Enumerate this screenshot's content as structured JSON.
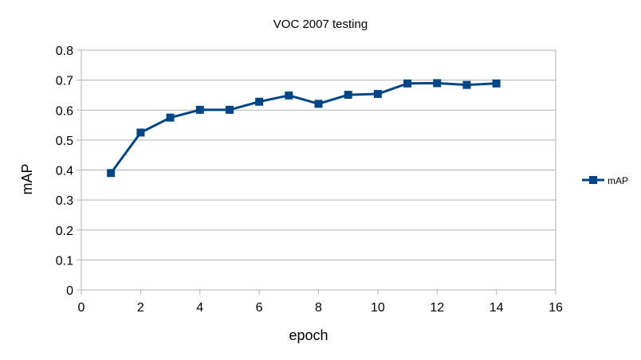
{
  "chart_data": {
    "type": "line",
    "title": "VOC 2007 testing",
    "xlabel": "epoch",
    "ylabel": "mAP",
    "xlim": [
      0,
      16
    ],
    "ylim": [
      0,
      0.8
    ],
    "x_ticks": [
      0,
      2,
      4,
      6,
      8,
      10,
      12,
      14,
      16
    ],
    "y_ticks": [
      "0",
      "0.1",
      "0.2",
      "0.3",
      "0.4",
      "0.5",
      "0.6",
      "0.7",
      "0.8"
    ],
    "grid": true,
    "legend_position": "right",
    "series": [
      {
        "name": "mAP",
        "color": "#004586",
        "marker": "square",
        "x": [
          1,
          2,
          3,
          4,
          5,
          6,
          7,
          8,
          9,
          10,
          11,
          12,
          13,
          14
        ],
        "values": [
          0.39,
          0.525,
          0.575,
          0.601,
          0.601,
          0.628,
          0.649,
          0.621,
          0.651,
          0.654,
          0.689,
          0.69,
          0.684,
          0.689
        ]
      }
    ]
  }
}
